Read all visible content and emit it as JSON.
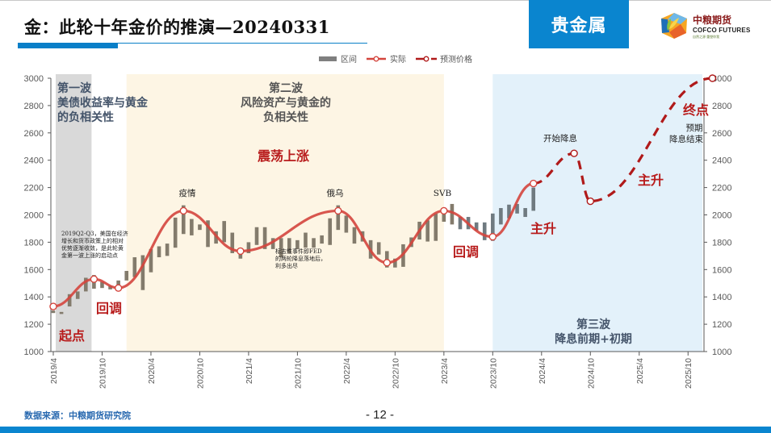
{
  "header": {
    "title": "金：此轮十年金价的推演—20240331",
    "section_badge": "贵金属",
    "logo": {
      "name_cn": "中粮期货",
      "name_en": "COFCO FUTURES",
      "slogan": "自然之源 重塑你我",
      "icon": "cofco-cube-logo-icon"
    }
  },
  "footer": {
    "source": "数据来源：中粮期货研究院",
    "page_number": "- 12 -"
  },
  "colors": {
    "brand_blue": "#0a85cf",
    "actual_line": "#d4453d",
    "forecast_line": "#b01a1a",
    "range_bar": "#837b6c",
    "range_bar_recent": "#6f7a80",
    "wave1_bg": "#d9d9d9",
    "wave2_bg": "#fdf5e4",
    "wave3_bg": "#e3f1fa",
    "annotation_red": "#b81c1c",
    "wave_label": "#44546a"
  },
  "chart_data": {
    "type": "line",
    "title": "金：此轮十年金价的推演—20240331",
    "xlabel": "",
    "ylabel": "",
    "ylim": [
      1000,
      3000
    ],
    "y_ticks": [
      "1000",
      "1200",
      "1400",
      "1600",
      "1800",
      "2000",
      "2200",
      "2400",
      "2600",
      "2800",
      "3000"
    ],
    "y_ticks_right": [
      "1000",
      "1200",
      "1400",
      "1600",
      "1800",
      "2000",
      "2200",
      "2400",
      "2600",
      "2800",
      "3000"
    ],
    "x_ticks": [
      "2019/4",
      "2019/10",
      "2020/4",
      "2020/10",
      "2021/4",
      "2021/10",
      "2022/4",
      "2022/10",
      "2023/4",
      "2023/10",
      "2024/4",
      "2024/10",
      "2025/4",
      "2025/10"
    ],
    "grid": false,
    "legend": {
      "position": "top",
      "entries": [
        "区间",
        "实际",
        "预测价格"
      ]
    },
    "series": [
      {
        "name": "区间",
        "type": "range-bar",
        "points": [
          {
            "x": "2019/04",
            "low": 1282,
            "high": 1300
          },
          {
            "x": "2019/05",
            "low": 1275,
            "high": 1290
          },
          {
            "x": "2019/06",
            "low": 1330,
            "high": 1420
          },
          {
            "x": "2019/07",
            "low": 1385,
            "high": 1440
          },
          {
            "x": "2019/08",
            "low": 1440,
            "high": 1540
          },
          {
            "x": "2019/09",
            "low": 1460,
            "high": 1560
          },
          {
            "x": "2019/10",
            "low": 1465,
            "high": 1510
          },
          {
            "x": "2019/11",
            "low": 1455,
            "high": 1480
          },
          {
            "x": "2019/12",
            "low": 1460,
            "high": 1520
          },
          {
            "x": "2020/01",
            "low": 1520,
            "high": 1590
          },
          {
            "x": "2020/02",
            "low": 1545,
            "high": 1690
          },
          {
            "x": "2020/03",
            "low": 1450,
            "high": 1705
          },
          {
            "x": "2020/04",
            "low": 1580,
            "high": 1750
          },
          {
            "x": "2020/05",
            "low": 1690,
            "high": 1770
          },
          {
            "x": "2020/06",
            "low": 1700,
            "high": 1790
          },
          {
            "x": "2020/07",
            "low": 1760,
            "high": 1980
          },
          {
            "x": "2020/08",
            "low": 1860,
            "high": 2070
          },
          {
            "x": "2020/09",
            "low": 1850,
            "high": 1970
          },
          {
            "x": "2020/10",
            "low": 1890,
            "high": 1930
          },
          {
            "x": "2020/11",
            "low": 1765,
            "high": 1960
          },
          {
            "x": "2020/12",
            "low": 1790,
            "high": 1880
          },
          {
            "x": "2021/01",
            "low": 1800,
            "high": 1955
          },
          {
            "x": "2021/02",
            "low": 1720,
            "high": 1870
          },
          {
            "x": "2021/03",
            "low": 1680,
            "high": 1750
          },
          {
            "x": "2021/04",
            "low": 1720,
            "high": 1800
          },
          {
            "x": "2021/05",
            "low": 1780,
            "high": 1910
          },
          {
            "x": "2021/06",
            "low": 1750,
            "high": 1910
          },
          {
            "x": "2021/07",
            "low": 1750,
            "high": 1830
          },
          {
            "x": "2021/08",
            "low": 1690,
            "high": 1830
          },
          {
            "x": "2021/09",
            "low": 1720,
            "high": 1830
          },
          {
            "x": "2021/10",
            "low": 1750,
            "high": 1815
          },
          {
            "x": "2021/11",
            "low": 1760,
            "high": 1870
          },
          {
            "x": "2021/12",
            "low": 1760,
            "high": 1830
          },
          {
            "x": "2022/01",
            "low": 1790,
            "high": 1850
          },
          {
            "x": "2022/02",
            "low": 1780,
            "high": 1975
          },
          {
            "x": "2022/03",
            "low": 1890,
            "high": 2070
          },
          {
            "x": "2022/04",
            "low": 1870,
            "high": 1995
          },
          {
            "x": "2022/05",
            "low": 1790,
            "high": 1910
          },
          {
            "x": "2022/06",
            "low": 1805,
            "high": 1880
          },
          {
            "x": "2022/07",
            "low": 1680,
            "high": 1815
          },
          {
            "x": "2022/08",
            "low": 1710,
            "high": 1800
          },
          {
            "x": "2022/09",
            "low": 1615,
            "high": 1735
          },
          {
            "x": "2022/10",
            "low": 1615,
            "high": 1680
          },
          {
            "x": "2022/11",
            "low": 1620,
            "high": 1785
          },
          {
            "x": "2022/12",
            "low": 1765,
            "high": 1835
          },
          {
            "x": "2023/01",
            "low": 1820,
            "high": 1950
          },
          {
            "x": "2023/02",
            "low": 1805,
            "high": 1960
          },
          {
            "x": "2023/03",
            "low": 1810,
            "high": 2010
          },
          {
            "x": "2023/04",
            "low": 1950,
            "high": 2050
          },
          {
            "x": "2023/05",
            "low": 1930,
            "high": 2080
          },
          {
            "x": "2023/06",
            "low": 1895,
            "high": 1985
          },
          {
            "x": "2023/07",
            "low": 1895,
            "high": 1985
          },
          {
            "x": "2023/08",
            "low": 1885,
            "high": 1945
          },
          {
            "x": "2023/09",
            "low": 1815,
            "high": 1945
          },
          {
            "x": "2023/10",
            "low": 1810,
            "high": 2010
          },
          {
            "x": "2023/11",
            "low": 1930,
            "high": 2050
          },
          {
            "x": "2023/12",
            "low": 1975,
            "high": 2075
          },
          {
            "x": "2024/01",
            "low": 2010,
            "high": 2080
          },
          {
            "x": "2024/02",
            "low": 1985,
            "high": 2050
          },
          {
            "x": "2024/03",
            "low": 2030,
            "high": 2200
          }
        ]
      },
      {
        "name": "实际",
        "type": "line-smooth",
        "points": [
          {
            "x": "2019/04",
            "y": 1330
          },
          {
            "x": "2019/09",
            "y": 1530
          },
          {
            "x": "2019/12",
            "y": 1465
          },
          {
            "x": "2020/08",
            "y": 2030
          },
          {
            "x": "2021/03",
            "y": 1735
          },
          {
            "x": "2022/03",
            "y": 2030
          },
          {
            "x": "2022/09",
            "y": 1650
          },
          {
            "x": "2023/04",
            "y": 2030
          },
          {
            "x": "2023/10",
            "y": 1840
          },
          {
            "x": "2024/03",
            "y": 2230
          }
        ]
      },
      {
        "name": "预测价格",
        "type": "line-dashed",
        "points": [
          {
            "x": "2024/03",
            "y": 2230
          },
          {
            "x": "2024/08",
            "y": 2450
          },
          {
            "x": "2024/10",
            "y": 2100
          },
          {
            "x": "2026/01",
            "y": 3000
          }
        ]
      }
    ],
    "bands": [
      {
        "name": "第一波",
        "from": "2019/04",
        "to": "2019/09",
        "color": "#d9d9d9"
      },
      {
        "name": "第二波",
        "from": "2020/01",
        "to": "2023/04",
        "color": "#fdf5e4"
      },
      {
        "name": "第三波",
        "from": "2023/10",
        "to": "2026/01",
        "color": "#e3f1fa"
      }
    ],
    "annotations": {
      "wave1": {
        "title": "第一波",
        "line1": "美债收益率与黄金",
        "line2": "的负相关性"
      },
      "wave2": {
        "title": "第二波",
        "line1": "风险资产与黄金的",
        "line2": "负相关性"
      },
      "wave3": {
        "title": "第三波",
        "line1": "降息前期+初期"
      },
      "wave2_trend": "震荡上涨",
      "start": "起点",
      "end": "终点",
      "pullback_1": "回调",
      "pullback_2": "回调",
      "rally_1": "主升",
      "rally_2": "主升",
      "event_covid": "疫情",
      "event_russia_ukraine": "俄乌",
      "event_svb": "SVB",
      "event_rate_cut_start": "开始降息",
      "event_rate_cut_end_l1": "预期",
      "event_rate_cut_end_l2": "降息结束",
      "note_2019": [
        "2019Q2-Q3，美国在经济",
        "增长和货币政策上的相对",
        "优势逐渐收敛，是此轮黄",
        "金第一波上涨的启动点"
      ],
      "note_fed": [
        "标志性事件即FED",
        "的两轮降息落地后，",
        "利多出尽"
      ]
    }
  }
}
